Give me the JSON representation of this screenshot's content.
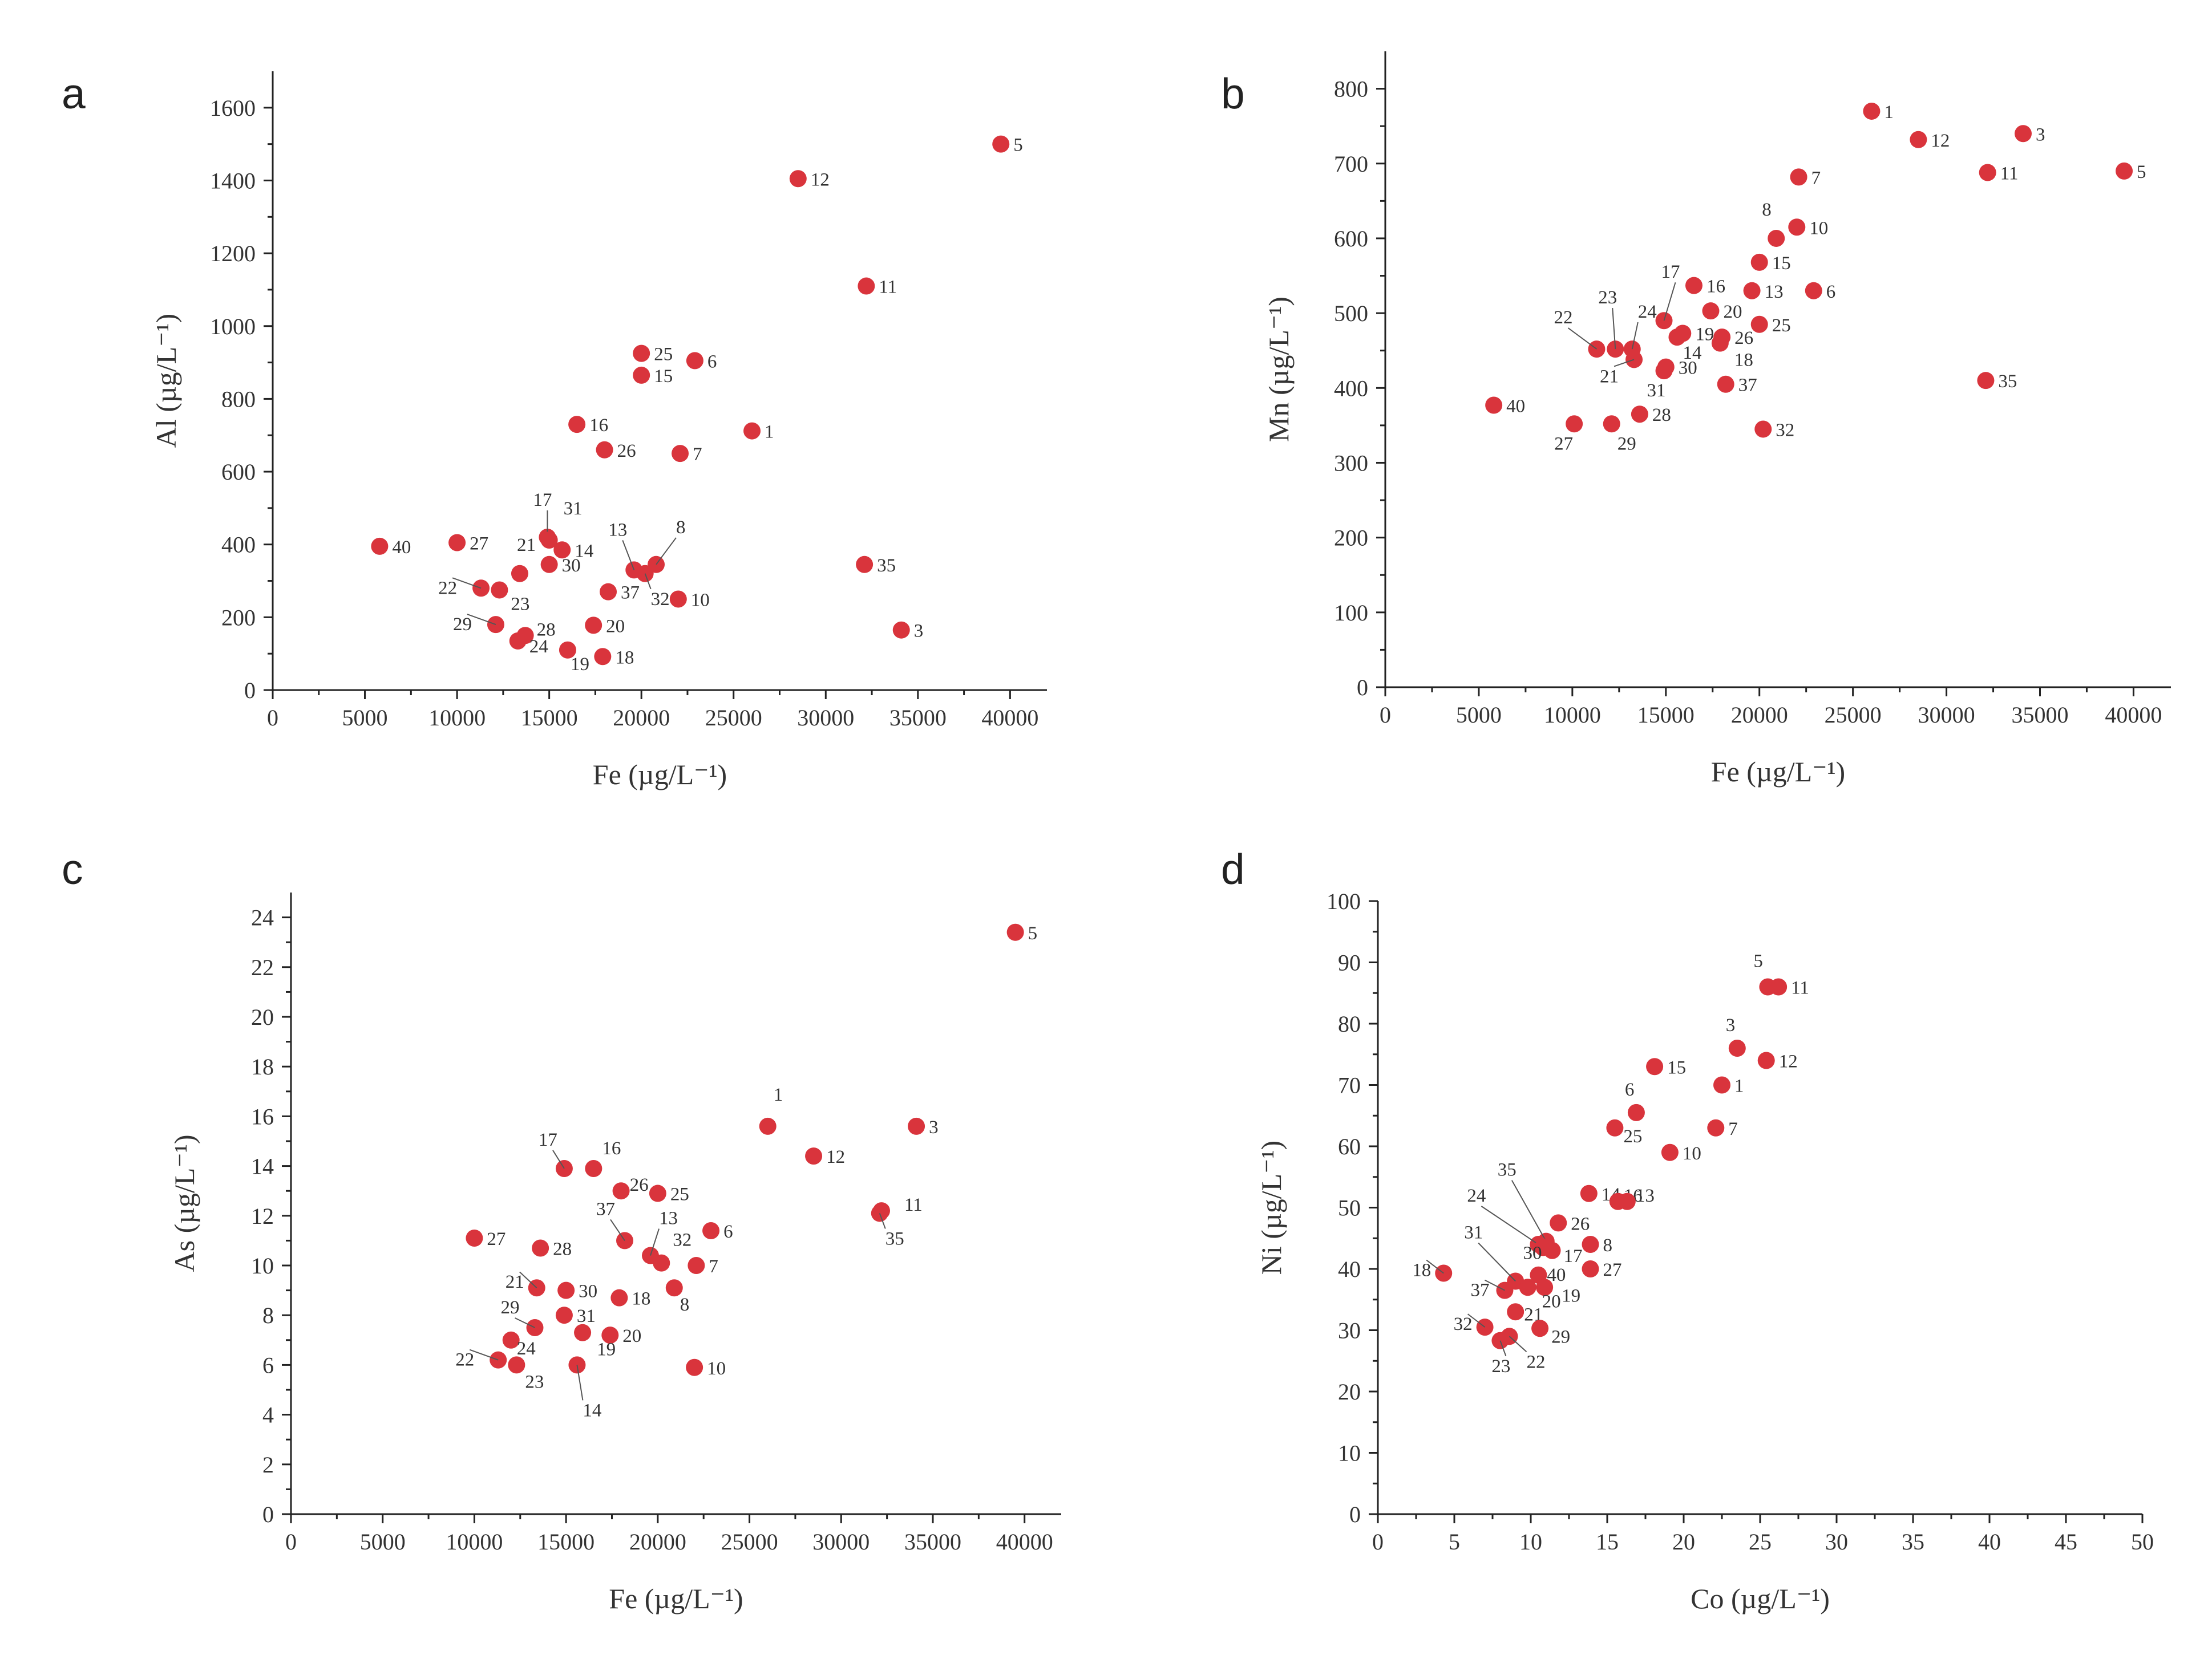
{
  "colors": {
    "point": "#d9343c",
    "axis": "#222222",
    "text": "#333333"
  },
  "chart_data": [
    {
      "type": "scatter",
      "panel": "a",
      "title": "",
      "xlabel": "Fe (µg/L⁻¹)",
      "ylabel": "Al (µg/L⁻¹)",
      "xlim": [
        0,
        42000
      ],
      "ylim": [
        0,
        1700
      ],
      "xticks": [
        0,
        5000,
        10000,
        15000,
        20000,
        25000,
        30000,
        35000,
        40000
      ],
      "yticks": [
        0,
        200,
        400,
        600,
        800,
        1000,
        1200,
        1400,
        1600
      ],
      "points": [
        {
          "id": "5",
          "x": 39500,
          "y": 1500
        },
        {
          "id": "12",
          "x": 28500,
          "y": 1405
        },
        {
          "id": "11",
          "x": 32200,
          "y": 1110
        },
        {
          "id": "25",
          "x": 20000,
          "y": 925
        },
        {
          "id": "6",
          "x": 22900,
          "y": 905
        },
        {
          "id": "15",
          "x": 20000,
          "y": 865
        },
        {
          "id": "16",
          "x": 16500,
          "y": 730
        },
        {
          "id": "1",
          "x": 26000,
          "y": 712
        },
        {
          "id": "26",
          "x": 18000,
          "y": 660
        },
        {
          "id": "7",
          "x": 22100,
          "y": 650
        },
        {
          "id": "40",
          "x": 5800,
          "y": 395
        },
        {
          "id": "27",
          "x": 10000,
          "y": 405
        },
        {
          "id": "17",
          "x": 14900,
          "y": 420
        },
        {
          "id": "31",
          "x": 15000,
          "y": 412
        },
        {
          "id": "14",
          "x": 15700,
          "y": 385
        },
        {
          "id": "21",
          "x": 13400,
          "y": 320
        },
        {
          "id": "30",
          "x": 15000,
          "y": 345
        },
        {
          "id": "13",
          "x": 19600,
          "y": 330
        },
        {
          "id": "8",
          "x": 20800,
          "y": 345
        },
        {
          "id": "32",
          "x": 20200,
          "y": 320
        },
        {
          "id": "37",
          "x": 18200,
          "y": 270
        },
        {
          "id": "10",
          "x": 22000,
          "y": 250
        },
        {
          "id": "35",
          "x": 32100,
          "y": 345
        },
        {
          "id": "22",
          "x": 11300,
          "y": 280
        },
        {
          "id": "23",
          "x": 12300,
          "y": 275
        },
        {
          "id": "29",
          "x": 12100,
          "y": 180
        },
        {
          "id": "28",
          "x": 13700,
          "y": 150
        },
        {
          "id": "24",
          "x": 13300,
          "y": 135
        },
        {
          "id": "20",
          "x": 17400,
          "y": 178
        },
        {
          "id": "19",
          "x": 16000,
          "y": 110
        },
        {
          "id": "18",
          "x": 17900,
          "y": 92
        },
        {
          "id": "3",
          "x": 34100,
          "y": 165
        }
      ]
    },
    {
      "type": "scatter",
      "panel": "b",
      "title": "",
      "xlabel": "Fe (µg/L⁻¹)",
      "ylabel": "Mn (µg/L⁻¹)",
      "xlim": [
        0,
        42000
      ],
      "ylim": [
        0,
        850
      ],
      "xticks": [
        0,
        5000,
        10000,
        15000,
        20000,
        25000,
        30000,
        35000,
        40000
      ],
      "yticks": [
        0,
        100,
        200,
        300,
        400,
        500,
        600,
        700,
        800
      ],
      "points": [
        {
          "id": "1",
          "x": 26000,
          "y": 770
        },
        {
          "id": "3",
          "x": 34100,
          "y": 740
        },
        {
          "id": "12",
          "x": 28500,
          "y": 732
        },
        {
          "id": "11",
          "x": 32200,
          "y": 688
        },
        {
          "id": "5",
          "x": 39500,
          "y": 690
        },
        {
          "id": "7",
          "x": 22100,
          "y": 682
        },
        {
          "id": "8",
          "x": 20900,
          "y": 600
        },
        {
          "id": "10",
          "x": 22000,
          "y": 615
        },
        {
          "id": "15",
          "x": 20000,
          "y": 568
        },
        {
          "id": "16",
          "x": 16500,
          "y": 537
        },
        {
          "id": "13",
          "x": 19600,
          "y": 530
        },
        {
          "id": "6",
          "x": 22900,
          "y": 530
        },
        {
          "id": "17",
          "x": 14900,
          "y": 490
        },
        {
          "id": "20",
          "x": 17400,
          "y": 503
        },
        {
          "id": "25",
          "x": 20000,
          "y": 485
        },
        {
          "id": "19",
          "x": 15900,
          "y": 473
        },
        {
          "id": "26",
          "x": 18000,
          "y": 468
        },
        {
          "id": "14",
          "x": 15600,
          "y": 468
        },
        {
          "id": "18",
          "x": 17900,
          "y": 460
        },
        {
          "id": "22",
          "x": 11300,
          "y": 452
        },
        {
          "id": "23",
          "x": 12300,
          "y": 452
        },
        {
          "id": "24",
          "x": 13200,
          "y": 452
        },
        {
          "id": "21",
          "x": 13300,
          "y": 438
        },
        {
          "id": "30",
          "x": 15000,
          "y": 428
        },
        {
          "id": "31",
          "x": 14900,
          "y": 423
        },
        {
          "id": "37",
          "x": 18200,
          "y": 405
        },
        {
          "id": "35",
          "x": 32100,
          "y": 410
        },
        {
          "id": "40",
          "x": 5800,
          "y": 377
        },
        {
          "id": "28",
          "x": 13600,
          "y": 365
        },
        {
          "id": "27",
          "x": 10100,
          "y": 352
        },
        {
          "id": "29",
          "x": 12100,
          "y": 352
        },
        {
          "id": "32",
          "x": 20200,
          "y": 345
        }
      ]
    },
    {
      "type": "scatter",
      "panel": "c",
      "title": "",
      "xlabel": "Fe (µg/L⁻¹)",
      "ylabel": "As (µg/L⁻¹)",
      "xlim": [
        0,
        42000
      ],
      "ylim": [
        0,
        25
      ],
      "xticks": [
        0,
        5000,
        10000,
        15000,
        20000,
        25000,
        30000,
        35000,
        40000
      ],
      "yticks": [
        0,
        2,
        4,
        6,
        8,
        10,
        12,
        14,
        16,
        18,
        20,
        22,
        24
      ],
      "points": [
        {
          "id": "5",
          "x": 39500,
          "y": 23.4
        },
        {
          "id": "1",
          "x": 26000,
          "y": 15.6
        },
        {
          "id": "3",
          "x": 34100,
          "y": 15.6
        },
        {
          "id": "12",
          "x": 28500,
          "y": 14.4
        },
        {
          "id": "17",
          "x": 14900,
          "y": 13.9
        },
        {
          "id": "16",
          "x": 16500,
          "y": 13.9
        },
        {
          "id": "26",
          "x": 18000,
          "y": 13.0
        },
        {
          "id": "25",
          "x": 20000,
          "y": 12.9
        },
        {
          "id": "11",
          "x": 32200,
          "y": 12.2
        },
        {
          "id": "35",
          "x": 32100,
          "y": 12.1
        },
        {
          "id": "6",
          "x": 22900,
          "y": 11.4
        },
        {
          "id": "27",
          "x": 10000,
          "y": 11.1
        },
        {
          "id": "37",
          "x": 18200,
          "y": 11.0
        },
        {
          "id": "28",
          "x": 13600,
          "y": 10.7
        },
        {
          "id": "13",
          "x": 19600,
          "y": 10.4
        },
        {
          "id": "32",
          "x": 20200,
          "y": 10.1
        },
        {
          "id": "7",
          "x": 22100,
          "y": 10.0
        },
        {
          "id": "21",
          "x": 13400,
          "y": 9.1
        },
        {
          "id": "30",
          "x": 15000,
          "y": 9.0
        },
        {
          "id": "8",
          "x": 20900,
          "y": 9.1
        },
        {
          "id": "18",
          "x": 17900,
          "y": 8.7
        },
        {
          "id": "31",
          "x": 14900,
          "y": 8.0
        },
        {
          "id": "29",
          "x": 13300,
          "y": 7.5
        },
        {
          "id": "24",
          "x": 12000,
          "y": 7.0
        },
        {
          "id": "20",
          "x": 17400,
          "y": 7.2
        },
        {
          "id": "19",
          "x": 15900,
          "y": 7.3
        },
        {
          "id": "22",
          "x": 11300,
          "y": 6.2
        },
        {
          "id": "23",
          "x": 12300,
          "y": 6.0
        },
        {
          "id": "14",
          "x": 15600,
          "y": 6.0
        },
        {
          "id": "10",
          "x": 22000,
          "y": 5.9
        }
      ]
    },
    {
      "type": "scatter",
      "panel": "d",
      "title": "",
      "xlabel": "Co (µg/L⁻¹)",
      "ylabel": "Ni (µg/L⁻¹)",
      "xlim": [
        0,
        50
      ],
      "ylim": [
        0,
        100
      ],
      "xticks": [
        0,
        5,
        10,
        15,
        20,
        25,
        30,
        35,
        40,
        45,
        50
      ],
      "yticks": [
        0,
        10,
        20,
        30,
        40,
        50,
        60,
        70,
        80,
        90,
        100
      ],
      "points": [
        {
          "id": "5",
          "x": 25.5,
          "y": 86
        },
        {
          "id": "11",
          "x": 26.2,
          "y": 86
        },
        {
          "id": "3",
          "x": 23.5,
          "y": 76
        },
        {
          "id": "12",
          "x": 25.4,
          "y": 74
        },
        {
          "id": "15",
          "x": 18.1,
          "y": 73
        },
        {
          "id": "1",
          "x": 22.5,
          "y": 70
        },
        {
          "id": "6",
          "x": 16.9,
          "y": 65.5
        },
        {
          "id": "25",
          "x": 15.5,
          "y": 63
        },
        {
          "id": "7",
          "x": 22.1,
          "y": 63
        },
        {
          "id": "10",
          "x": 19.1,
          "y": 59
        },
        {
          "id": "14",
          "x": 13.8,
          "y": 52.3
        },
        {
          "id": "16",
          "x": 15.7,
          "y": 51
        },
        {
          "id": "13",
          "x": 16.3,
          "y": 51
        },
        {
          "id": "26",
          "x": 11.8,
          "y": 47.5
        },
        {
          "id": "35",
          "x": 11.0,
          "y": 44.5
        },
        {
          "id": "24",
          "x": 10.5,
          "y": 44
        },
        {
          "id": "8",
          "x": 13.9,
          "y": 44
        },
        {
          "id": "30",
          "x": 10.8,
          "y": 43.5
        },
        {
          "id": "17",
          "x": 11.4,
          "y": 43
        },
        {
          "id": "27",
          "x": 13.9,
          "y": 40
        },
        {
          "id": "18",
          "x": 4.3,
          "y": 39.3
        },
        {
          "id": "40",
          "x": 10.5,
          "y": 39
        },
        {
          "id": "31",
          "x": 9.0,
          "y": 38
        },
        {
          "id": "37",
          "x": 8.3,
          "y": 36.5
        },
        {
          "id": "19",
          "x": 10.9,
          "y": 37
        },
        {
          "id": "20",
          "x": 9.8,
          "y": 37
        },
        {
          "id": "21",
          "x": 9.0,
          "y": 33
        },
        {
          "id": "32",
          "x": 7.0,
          "y": 30.5
        },
        {
          "id": "29",
          "x": 10.6,
          "y": 30.3
        },
        {
          "id": "23",
          "x": 8.0,
          "y": 28.3
        },
        {
          "id": "22",
          "x": 8.6,
          "y": 29
        }
      ]
    }
  ]
}
